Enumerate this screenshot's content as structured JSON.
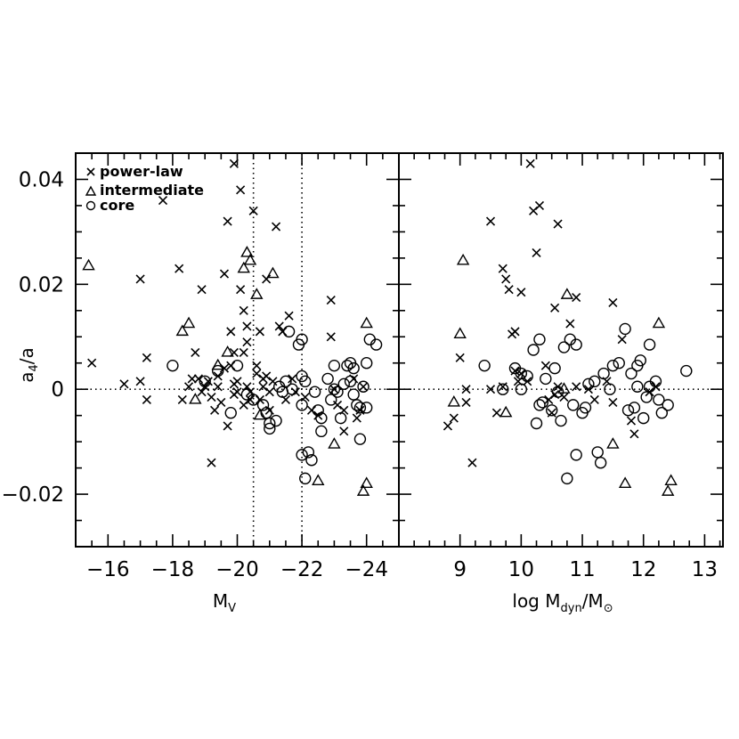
{
  "figure": {
    "ylabel": "a",
    "ylabel_sub": "4",
    "ylabel_tail": "/a",
    "left_xlabel": "M",
    "left_xlabel_sub": "V",
    "right_xlabel_pre": "log M",
    "right_xlabel_sub1": "dyn",
    "right_xlabel_mid": "/M",
    "right_xlabel_sub2": "⊙",
    "legend": {
      "power_law": "power-law",
      "intermediate": "intermediate",
      "core": "core"
    }
  },
  "chart_data": [
    {
      "type": "scatter",
      "panel": "left",
      "xlabel": "M_V",
      "ylabel": "a_4/a",
      "xlim": [
        -15.0,
        -25.0
      ],
      "ylim": [
        -0.03,
        0.045
      ],
      "x_reversed": true,
      "xticks": [
        -16,
        -18,
        -20,
        -22,
        -24
      ],
      "yticks": [
        -0.02,
        0,
        0.02,
        0.04
      ],
      "ytick_labels": [
        "−0.02",
        "0",
        "0.02",
        "0.04"
      ],
      "xtick_labels": [
        "−16",
        "−18",
        "−20",
        "−22",
        "−24"
      ],
      "reference_lines": {
        "horizontal": [
          0
        ],
        "vertical": [
          -20.5,
          -22.0
        ]
      },
      "legend_position": "top-left",
      "series": [
        {
          "name": "power-law",
          "marker": "x",
          "points": [
            [
              -15.5,
              0.005
            ],
            [
              -16.5,
              0.001
            ],
            [
              -17.0,
              0.0015
            ],
            [
              -17.2,
              -0.002
            ],
            [
              -17.2,
              0.006
            ],
            [
              -17.0,
              0.021
            ],
            [
              -17.7,
              0.036
            ],
            [
              -18.2,
              0.023
            ],
            [
              -18.6,
              0.002
            ],
            [
              -18.5,
              0.0005
            ],
            [
              -18.7,
              0.007
            ],
            [
              -18.3,
              -0.002
            ],
            [
              -18.8,
              0.002
            ],
            [
              -18.9,
              0.019
            ],
            [
              -18.9,
              -0.0005
            ],
            [
              -19.0,
              0.0005
            ],
            [
              -19.1,
              0.0015
            ],
            [
              -19.2,
              -0.0015
            ],
            [
              -19.3,
              -0.004
            ],
            [
              -19.2,
              -0.014
            ],
            [
              -19.4,
              0.0025
            ],
            [
              -19.4,
              0.0005
            ],
            [
              -19.5,
              -0.0025
            ],
            [
              -19.6,
              0.004
            ],
            [
              -19.6,
              0.022
            ],
            [
              -19.7,
              -0.007
            ],
            [
              -19.7,
              0.032
            ],
            [
              -19.8,
              0.011
            ],
            [
              -19.8,
              0.0045
            ],
            [
              -19.9,
              0.001
            ],
            [
              -19.9,
              -0.001
            ],
            [
              -19.9,
              0.007
            ],
            [
              -19.9,
              0.043
            ],
            [
              -20.0,
              0.0015
            ],
            [
              -20.0,
              -0.0005
            ],
            [
              -20.1,
              0.038
            ],
            [
              -20.1,
              0.019
            ],
            [
              -20.2,
              0.015
            ],
            [
              -20.2,
              0.007
            ],
            [
              -20.2,
              -0.003
            ],
            [
              -20.3,
              0.012
            ],
            [
              -20.3,
              0.0005
            ],
            [
              -20.3,
              0.009
            ],
            [
              -20.4,
              -0.0005
            ],
            [
              -20.4,
              -0.002
            ],
            [
              -20.5,
              0.034
            ],
            [
              -20.6,
              0.0045
            ],
            [
              -20.6,
              0.003
            ],
            [
              -20.7,
              -0.002
            ],
            [
              -20.7,
              0.011
            ],
            [
              -20.8,
              0.002
            ],
            [
              -20.8,
              0.0005
            ],
            [
              -20.9,
              0.021
            ],
            [
              -20.9,
              0.0025
            ],
            [
              -21.0,
              -0.0005
            ],
            [
              -21.0,
              -0.004
            ],
            [
              -21.1,
              0.0015
            ],
            [
              -21.2,
              0.031
            ],
            [
              -21.3,
              0.012
            ],
            [
              -21.4,
              0.011
            ],
            [
              -21.5,
              -0.002
            ],
            [
              -21.6,
              0.014
            ],
            [
              -21.7,
              0.002
            ],
            [
              -21.8,
              -0.0005
            ],
            [
              -22.1,
              -0.0015
            ],
            [
              -22.3,
              -0.004
            ],
            [
              -22.5,
              -0.005
            ],
            [
              -22.9,
              0.01
            ],
            [
              -22.9,
              0.017
            ],
            [
              -23.0,
              0.0
            ],
            [
              -23.1,
              -0.003
            ],
            [
              -23.3,
              -0.004
            ],
            [
              -23.3,
              -0.008
            ],
            [
              -23.6,
              0.002
            ],
            [
              -23.7,
              -0.0055
            ],
            [
              -23.8,
              -0.004
            ],
            [
              -23.9,
              0.0005
            ]
          ]
        },
        {
          "name": "intermediate",
          "marker": "triangle",
          "points": [
            [
              -15.4,
              0.0235
            ],
            [
              -18.3,
              0.011
            ],
            [
              -18.5,
              0.0125
            ],
            [
              -18.7,
              -0.002
            ],
            [
              -19.4,
              0.0045
            ],
            [
              -19.7,
              0.007
            ],
            [
              -20.2,
              0.023
            ],
            [
              -20.3,
              0.026
            ],
            [
              -20.4,
              0.0245
            ],
            [
              -20.6,
              0.018
            ],
            [
              -20.7,
              -0.005
            ],
            [
              -21.1,
              0.022
            ],
            [
              -22.5,
              -0.0175
            ],
            [
              -23.0,
              -0.0105
            ],
            [
              -23.9,
              -0.0195
            ],
            [
              -24.0,
              -0.018
            ],
            [
              -24.0,
              0.0125
            ]
          ]
        },
        {
          "name": "core",
          "marker": "circle",
          "points": [
            [
              -18.0,
              0.0045
            ],
            [
              -19.0,
              0.0015
            ],
            [
              -19.4,
              0.0035
            ],
            [
              -19.8,
              -0.0045
            ],
            [
              -20.0,
              0.0045
            ],
            [
              -20.3,
              -0.001
            ],
            [
              -20.5,
              -0.002
            ],
            [
              -20.8,
              -0.003
            ],
            [
              -20.9,
              -0.0045
            ],
            [
              -21.0,
              -0.0065
            ],
            [
              -21.0,
              -0.0075
            ],
            [
              -21.2,
              -0.006
            ],
            [
              -21.3,
              0.0005
            ],
            [
              -21.4,
              -0.0005
            ],
            [
              -21.5,
              0.0015
            ],
            [
              -21.6,
              0.011
            ],
            [
              -21.7,
              0.0
            ],
            [
              -21.9,
              0.0085
            ],
            [
              -22.0,
              0.0095
            ],
            [
              -22.0,
              0.0025
            ],
            [
              -22.0,
              -0.003
            ],
            [
              -22.0,
              -0.0125
            ],
            [
              -22.1,
              0.0015
            ],
            [
              -22.2,
              -0.012
            ],
            [
              -22.3,
              -0.0135
            ],
            [
              -22.1,
              -0.017
            ],
            [
              -22.4,
              -0.0005
            ],
            [
              -22.5,
              -0.004
            ],
            [
              -22.6,
              -0.0055
            ],
            [
              -22.6,
              -0.008
            ],
            [
              -22.8,
              0.002
            ],
            [
              -22.9,
              -0.002
            ],
            [
              -23.0,
              0.0045
            ],
            [
              -23.0,
              0.0
            ],
            [
              -23.1,
              -0.0005
            ],
            [
              -23.2,
              -0.0055
            ],
            [
              -23.3,
              0.001
            ],
            [
              -23.4,
              0.0045
            ],
            [
              -23.5,
              0.005
            ],
            [
              -23.5,
              0.0015
            ],
            [
              -23.6,
              0.004
            ],
            [
              -23.6,
              -0.001
            ],
            [
              -23.7,
              -0.003
            ],
            [
              -23.8,
              -0.0035
            ],
            [
              -23.8,
              -0.0095
            ],
            [
              -23.9,
              0.0005
            ],
            [
              -24.0,
              -0.0035
            ],
            [
              -24.0,
              0.005
            ],
            [
              -24.1,
              0.0095
            ],
            [
              -24.3,
              0.0085
            ]
          ]
        }
      ]
    },
    {
      "type": "scatter",
      "panel": "right",
      "xlabel": "log M_dyn/M_sun",
      "ylabel": "a_4/a",
      "xlim": [
        8.0,
        13.3
      ],
      "ylim": [
        -0.03,
        0.045
      ],
      "xticks": [
        9,
        10,
        11,
        12,
        13
      ],
      "xtick_labels": [
        "9",
        "10",
        "11",
        "12",
        "13"
      ],
      "reference_lines": {
        "horizontal": [
          0
        ]
      },
      "series": [
        {
          "name": "power-law",
          "marker": "x",
          "points": [
            [
              8.8,
              -0.007
            ],
            [
              8.9,
              -0.0055
            ],
            [
              9.0,
              0.006
            ],
            [
              9.1,
              0.0
            ],
            [
              9.1,
              -0.0025
            ],
            [
              9.2,
              -0.014
            ],
            [
              9.5,
              0.032
            ],
            [
              9.5,
              0.0
            ],
            [
              9.6,
              -0.0045
            ],
            [
              9.7,
              0.023
            ],
            [
              9.7,
              0.0005
            ],
            [
              9.75,
              0.021
            ],
            [
              9.8,
              0.019
            ],
            [
              9.85,
              0.0105
            ],
            [
              9.9,
              0.011
            ],
            [
              9.9,
              0.0035
            ],
            [
              9.95,
              0.0015
            ],
            [
              10.0,
              0.0185
            ],
            [
              10.0,
              0.003
            ],
            [
              10.1,
              0.0015
            ],
            [
              10.15,
              0.043
            ],
            [
              10.2,
              0.034
            ],
            [
              10.25,
              0.026
            ],
            [
              10.3,
              0.035
            ],
            [
              10.4,
              0.0045
            ],
            [
              10.45,
              -0.002
            ],
            [
              10.5,
              -0.0045
            ],
            [
              10.55,
              0.0155
            ],
            [
              10.55,
              -0.001
            ],
            [
              10.6,
              0.0315
            ],
            [
              10.6,
              0.0005
            ],
            [
              10.7,
              -0.0015
            ],
            [
              10.8,
              0.0125
            ],
            [
              10.9,
              0.0175
            ],
            [
              10.9,
              0.0005
            ],
            [
              11.1,
              0.0
            ],
            [
              11.2,
              -0.002
            ],
            [
              11.4,
              0.0015
            ],
            [
              11.5,
              0.0165
            ],
            [
              11.5,
              -0.0025
            ],
            [
              11.65,
              0.0095
            ],
            [
              11.8,
              -0.006
            ],
            [
              11.85,
              -0.0085
            ],
            [
              12.1,
              -0.0005
            ],
            [
              12.2,
              0.0005
            ]
          ]
        },
        {
          "name": "intermediate",
          "marker": "triangle",
          "points": [
            [
              8.9,
              -0.0025
            ],
            [
              9.0,
              0.0105
            ],
            [
              9.05,
              0.0245
            ],
            [
              9.75,
              -0.0045
            ],
            [
              10.7,
              0.0
            ],
            [
              10.75,
              0.018
            ],
            [
              11.5,
              -0.0105
            ],
            [
              11.7,
              -0.018
            ],
            [
              12.25,
              0.0125
            ],
            [
              12.4,
              -0.0195
            ],
            [
              12.45,
              -0.0175
            ]
          ]
        },
        {
          "name": "core",
          "marker": "circle",
          "points": [
            [
              9.4,
              0.0045
            ],
            [
              9.7,
              0.0
            ],
            [
              9.9,
              0.004
            ],
            [
              10.0,
              0.003
            ],
            [
              10.0,
              0.0
            ],
            [
              10.1,
              0.0025
            ],
            [
              10.2,
              0.0075
            ],
            [
              10.25,
              -0.0065
            ],
            [
              10.3,
              -0.003
            ],
            [
              10.3,
              0.0095
            ],
            [
              10.35,
              -0.0025
            ],
            [
              10.4,
              0.002
            ],
            [
              10.5,
              -0.004
            ],
            [
              10.55,
              0.004
            ],
            [
              10.6,
              -0.0005
            ],
            [
              10.65,
              -0.006
            ],
            [
              10.7,
              0.008
            ],
            [
              10.75,
              -0.017
            ],
            [
              10.8,
              0.0095
            ],
            [
              10.85,
              -0.003
            ],
            [
              10.9,
              0.0085
            ],
            [
              10.9,
              -0.0125
            ],
            [
              11.0,
              -0.0045
            ],
            [
              11.05,
              -0.0035
            ],
            [
              11.1,
              0.001
            ],
            [
              11.2,
              0.0015
            ],
            [
              11.25,
              -0.012
            ],
            [
              11.3,
              -0.014
            ],
            [
              11.35,
              0.003
            ],
            [
              11.45,
              0.0
            ],
            [
              11.5,
              0.0045
            ],
            [
              11.6,
              0.005
            ],
            [
              11.7,
              0.0115
            ],
            [
              11.75,
              -0.004
            ],
            [
              11.8,
              0.003
            ],
            [
              11.85,
              -0.0035
            ],
            [
              11.9,
              0.0005
            ],
            [
              11.9,
              0.0045
            ],
            [
              11.95,
              0.0055
            ],
            [
              12.0,
              -0.0055
            ],
            [
              12.05,
              -0.0015
            ],
            [
              12.1,
              0.0085
            ],
            [
              12.1,
              0.0005
            ],
            [
              12.2,
              0.0015
            ],
            [
              12.25,
              -0.002
            ],
            [
              12.3,
              -0.0045
            ],
            [
              12.4,
              -0.003
            ],
            [
              12.7,
              0.0035
            ]
          ]
        }
      ]
    }
  ]
}
